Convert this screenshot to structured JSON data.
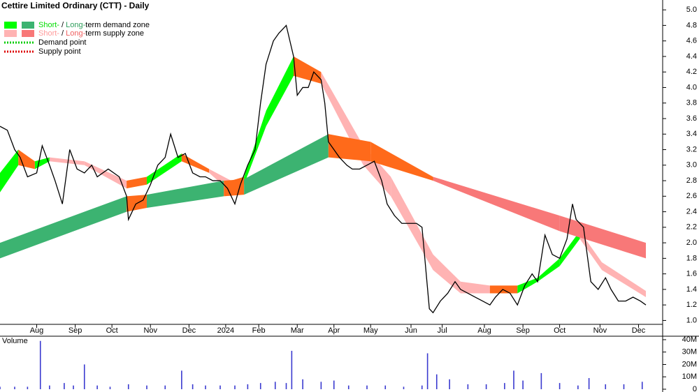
{
  "chart_data": [
    {
      "type": "line",
      "title": "Cettire Limited Ordinary (CTT) - Daily",
      "legend": {
        "demand": {
          "short": "Short-",
          "sep": " / ",
          "long": "Long-",
          "rest": "term demand zone"
        },
        "supply": {
          "short": "Short-",
          "sep": " / ",
          "long": "Long-",
          "rest": "term supply zone"
        },
        "demand_point": "Demand point",
        "supply_point": "Supply point"
      },
      "x": [
        0,
        4,
        8,
        11,
        15,
        20,
        23,
        27,
        30,
        34,
        38,
        42,
        46,
        50,
        53,
        59,
        65,
        69,
        70,
        74,
        78,
        82,
        86,
        90,
        93,
        97,
        101,
        105,
        109,
        112,
        116,
        120,
        124,
        128,
        131,
        135,
        139,
        142,
        145,
        149,
        152,
        156,
        160,
        162,
        165,
        168,
        171,
        175,
        177,
        179,
        182,
        185,
        189,
        192,
        196,
        200,
        204,
        208,
        211,
        215,
        219,
        223,
        227,
        230,
        234,
        236,
        240,
        244,
        248,
        251,
        255,
        259,
        263,
        267,
        270,
        274,
        278,
        282,
        286,
        290,
        293,
        297,
        301,
        305,
        309,
        312,
        314,
        318,
        322,
        326,
        330,
        333,
        337,
        341,
        345,
        349,
        352
      ],
      "series": [
        {
          "name": "CTT",
          "color": "#000000",
          "values": [
            3.5,
            3.45,
            3.2,
            3.1,
            2.85,
            2.9,
            3.25,
            3.0,
            2.8,
            2.5,
            3.2,
            2.95,
            2.9,
            3.0,
            2.85,
            2.95,
            2.85,
            2.6,
            2.3,
            2.5,
            2.55,
            2.75,
            3.0,
            3.1,
            3.4,
            3.1,
            3.15,
            2.9,
            2.85,
            2.85,
            2.8,
            2.8,
            2.7,
            2.5,
            2.75,
            3.0,
            3.2,
            3.8,
            4.3,
            4.6,
            4.7,
            4.8,
            4.4,
            3.9,
            4.0,
            4.0,
            4.2,
            4.1,
            3.8,
            3.3,
            3.2,
            3.1,
            3.0,
            2.95,
            2.95,
            3.0,
            3.05,
            2.8,
            2.5,
            2.35,
            2.25,
            2.25,
            2.25,
            2.2,
            1.15,
            1.1,
            1.25,
            1.35,
            1.5,
            1.4,
            1.35,
            1.3,
            1.25,
            1.2,
            1.3,
            1.4,
            1.35,
            1.2,
            1.45,
            1.6,
            1.5,
            2.1,
            1.85,
            1.8,
            2.05,
            2.5,
            2.3,
            2.2,
            1.5,
            1.4,
            1.55,
            1.4,
            1.25,
            1.25,
            1.3,
            1.25,
            1.2
          ]
        }
      ],
      "zones": [
        {
          "x": [
            0,
            10,
            19,
            27,
            46,
            69,
            80,
            99,
            114,
            126,
            133,
            145,
            160,
            175,
            198,
            213,
            236,
            251,
            267,
            282,
            293,
            305,
            316,
            328,
            352
          ],
          "lower": [
            2.65,
            3.0,
            2.95,
            3.05,
            3.0,
            2.7,
            2.75,
            3.05,
            2.9,
            2.65,
            2.75,
            3.5,
            4.15,
            4.05,
            3.0,
            2.6,
            1.65,
            1.35,
            1.35,
            1.35,
            1.5,
            1.7,
            2.05,
            1.65,
            1.3
          ],
          "upper": [
            2.9,
            3.2,
            3.05,
            3.1,
            3.05,
            2.8,
            2.85,
            3.15,
            2.95,
            2.8,
            2.85,
            3.7,
            4.4,
            4.2,
            3.25,
            2.85,
            1.85,
            1.5,
            1.45,
            1.45,
            1.55,
            1.8,
            2.15,
            1.75,
            1.38
          ],
          "colors": [
            "#00ff00",
            "#ff6a1a",
            "#00ff00",
            "#ffb3b3",
            "#ffb3b3",
            "#ff6a1a",
            "#00ff00",
            "#ff6a1a",
            "#ffb3b3",
            "#ff6a1a",
            "#00ff00",
            "#00ff00",
            "#ff6a1a",
            "#ffb3b3",
            "#ffb3b3",
            "#ffb3b3",
            "#ffb3b3",
            "#ffb3b3",
            "#ff6a1a",
            "#00ff00",
            "#00ff00",
            "#00ff00",
            "#ffb3b3",
            "#ffb3b3"
          ]
        },
        {
          "x": [
            0,
            69,
            80,
            122,
            133,
            179,
            202,
            236,
            305,
            352
          ],
          "lower": [
            1.8,
            2.4,
            2.45,
            2.6,
            2.62,
            3.1,
            3.05,
            2.8,
            2.15,
            1.8
          ],
          "upper": [
            2.0,
            2.6,
            2.62,
            2.8,
            2.82,
            3.4,
            3.3,
            2.85,
            2.35,
            2.0
          ],
          "colors": [
            "#3cb371",
            "#ff6a1a",
            "#3cb371",
            "#ff6a1a",
            "#3cb371",
            "#ff6a1a",
            "#ff6a1a",
            "#f87878",
            "#f87878"
          ]
        }
      ],
      "xlim": [
        0,
        360
      ],
      "xticks": [
        {
          "value": 20,
          "label": "Aug"
        },
        {
          "value": 41,
          "label": "Sep"
        },
        {
          "value": 61,
          "label": "Oct"
        },
        {
          "value": 82,
          "label": "Nov"
        },
        {
          "value": 103,
          "label": "Dec"
        },
        {
          "value": 123,
          "label": "2024"
        },
        {
          "value": 141,
          "label": "Feb"
        },
        {
          "value": 162,
          "label": "Mar"
        },
        {
          "value": 182,
          "label": "Apr"
        },
        {
          "value": 202,
          "label": "May"
        },
        {
          "value": 224,
          "label": "Jun"
        },
        {
          "value": 241,
          "label": "Jul"
        },
        {
          "value": 264,
          "label": "Aug"
        },
        {
          "value": 285,
          "label": "Sep"
        },
        {
          "value": 305,
          "label": "Oct"
        },
        {
          "value": 327,
          "label": "Nov"
        },
        {
          "value": 348,
          "label": "Dec"
        }
      ],
      "ylim": [
        0.95,
        5.1
      ],
      "yticks": [
        {
          "value": 1,
          "label": "1.0"
        },
        1.2,
        1.4,
        1.6,
        1.8,
        {
          "value": 2,
          "label": "2.0"
        },
        2.2,
        2.4,
        2.6,
        2.8,
        {
          "value": 3,
          "label": "3.0"
        },
        3.2,
        3.4,
        3.6,
        3.8,
        {
          "value": 4,
          "label": "4.0"
        },
        4.2,
        4.4,
        4.6,
        4.8,
        {
          "value": 5,
          "label": "5.0"
        }
      ]
    },
    {
      "type": "bar",
      "title": "Volume",
      "color": "#3a3ad0",
      "x": [
        0,
        8,
        15,
        22,
        27,
        35,
        40,
        46,
        53,
        60,
        70,
        80,
        90,
        99,
        105,
        112,
        120,
        128,
        135,
        142,
        150,
        156,
        159,
        165,
        175,
        182,
        190,
        200,
        210,
        220,
        230,
        233,
        238,
        245,
        255,
        265,
        275,
        280,
        285,
        295,
        305,
        315,
        321,
        330,
        340,
        350
      ],
      "values": [
        2,
        2,
        2,
        39,
        3,
        5,
        3,
        20,
        3,
        2,
        4,
        3,
        3,
        15,
        4,
        3,
        3,
        3,
        4,
        5,
        6,
        5,
        31,
        8,
        6,
        7,
        3,
        3,
        3,
        2,
        3,
        29,
        12,
        8,
        4,
        4,
        5,
        15,
        7,
        13,
        5,
        3,
        9,
        4,
        4,
        6
      ],
      "xlim": [
        0,
        360
      ],
      "ylim": [
        0,
        42.8
      ],
      "yticks": [
        0,
        {
          "value": 10,
          "label": "10M"
        },
        {
          "value": 20,
          "label": "20M"
        },
        {
          "value": 30,
          "label": "30M"
        },
        {
          "value": 40,
          "label": "40M"
        }
      ]
    }
  ]
}
